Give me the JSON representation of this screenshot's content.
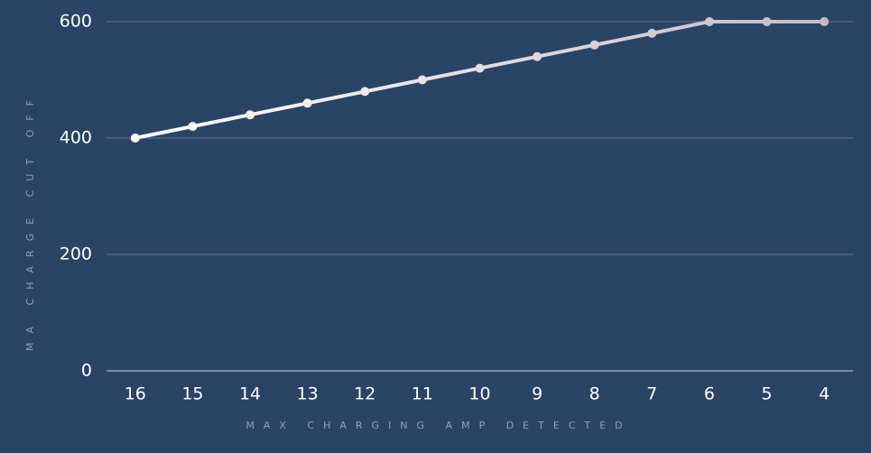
{
  "chart_data": {
    "type": "line",
    "x_label": "MAX CHARGING AMP DETECTED",
    "y_label": "MA CHARGE CUT OFF",
    "categories": [
      "16",
      "15",
      "14",
      "13",
      "12",
      "11",
      "10",
      "9",
      "8",
      "7",
      "6",
      "5",
      "4"
    ],
    "series": [
      {
        "name": "MA CHARGE CUT OFF",
        "color": "#ffffff",
        "gradient_end_color": "#c5bac3",
        "values": [
          400,
          420,
          440,
          460,
          480,
          500,
          520,
          540,
          560,
          580,
          600,
          600,
          600
        ]
      }
    ],
    "ylim": [
      0,
      600
    ],
    "yticks": [
      0,
      200,
      400,
      600
    ],
    "grid": true
  }
}
